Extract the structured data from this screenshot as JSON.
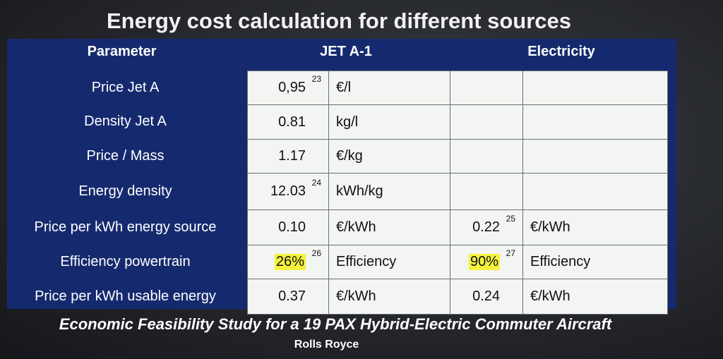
{
  "title": "Energy cost calculation for different sources",
  "table": {
    "header": [
      "Parameter",
      "JET A-1",
      "Electricity"
    ],
    "rows": [
      {
        "parameter": "Price Jet A",
        "jet": {
          "value": "0,95",
          "note": "23",
          "unit": "€/l"
        }
      },
      {
        "parameter": "Density Jet A",
        "jet": {
          "value": "0.81",
          "unit": "kg/l"
        }
      },
      {
        "parameter": "Price / Mass",
        "jet": {
          "value": "1.17",
          "unit": "€/kg"
        }
      },
      {
        "parameter": "Energy density",
        "jet": {
          "value": "12.03",
          "note": "24",
          "unit": "kWh/kg"
        }
      },
      {
        "parameter": "Price per kWh energy source",
        "jet": {
          "value": "0.10",
          "unit": "€/kWh"
        },
        "electricity": {
          "value": "0.22",
          "note": "25",
          "unit": "€/kWh"
        }
      },
      {
        "parameter": "Efficiency powertrain",
        "jet": {
          "value": "26%",
          "note": "26",
          "unit": "Efficiency",
          "highlighted": true
        },
        "electricity": {
          "value": "90%",
          "note": "27",
          "unit": "Efficiency",
          "highlighted": true
        }
      },
      {
        "parameter": "Price per kWh usable energy",
        "jet": {
          "value": "0.37",
          "unit": "€/kWh"
        },
        "electricity": {
          "value": "0.24",
          "unit": "€/kWh"
        }
      }
    ]
  },
  "caption": "Economic Feasibility Study for a 19 PAX Hybrid-Electric Commuter Aircraft",
  "source": "Rolls Royce"
}
